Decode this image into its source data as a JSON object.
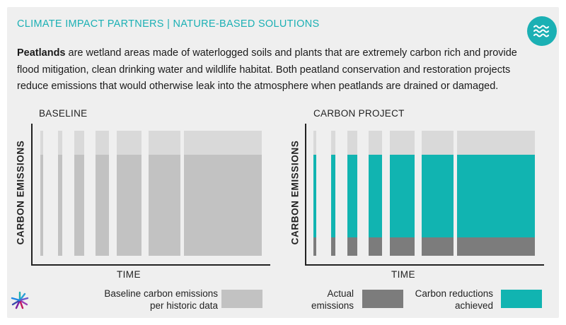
{
  "header": {
    "title": "CLIMATE IMPACT PARTNERS | NATURE-BASED SOLUTIONS",
    "badge_icon": "water-waves-icon",
    "accent_color": "#1bb0b4"
  },
  "intro": {
    "bold_term": "Peatlands",
    "text": " are wetland areas made of waterlogged soils and plants that are extremely carbon rich and provide flood mitigation, clean drinking water and wildlife habitat. Both peatland conservation and restoration projects reduce emissions that would otherwise leak into the atmosphere when peatlands are drained or damaged."
  },
  "panels": [
    {
      "title": "BASELINE",
      "ylabel": "CARBON EMISSIONS",
      "xlabel": "TIME"
    },
    {
      "title": "CARBON PROJECT",
      "ylabel": "CARBON EMISSIONS",
      "xlabel": "TIME"
    }
  ],
  "legend": {
    "baseline": {
      "line1": "Baseline carbon emissions",
      "line2": "per historic data",
      "color": "#c2c2c2"
    },
    "actual": {
      "line1": "Actual",
      "line2": "emissions",
      "color": "#7c7c7c"
    },
    "reductions": {
      "line1": "Carbon reductions",
      "line2": "achieved",
      "color": "#11b4b1"
    }
  },
  "brand_icon": "starburst-logo-icon"
}
